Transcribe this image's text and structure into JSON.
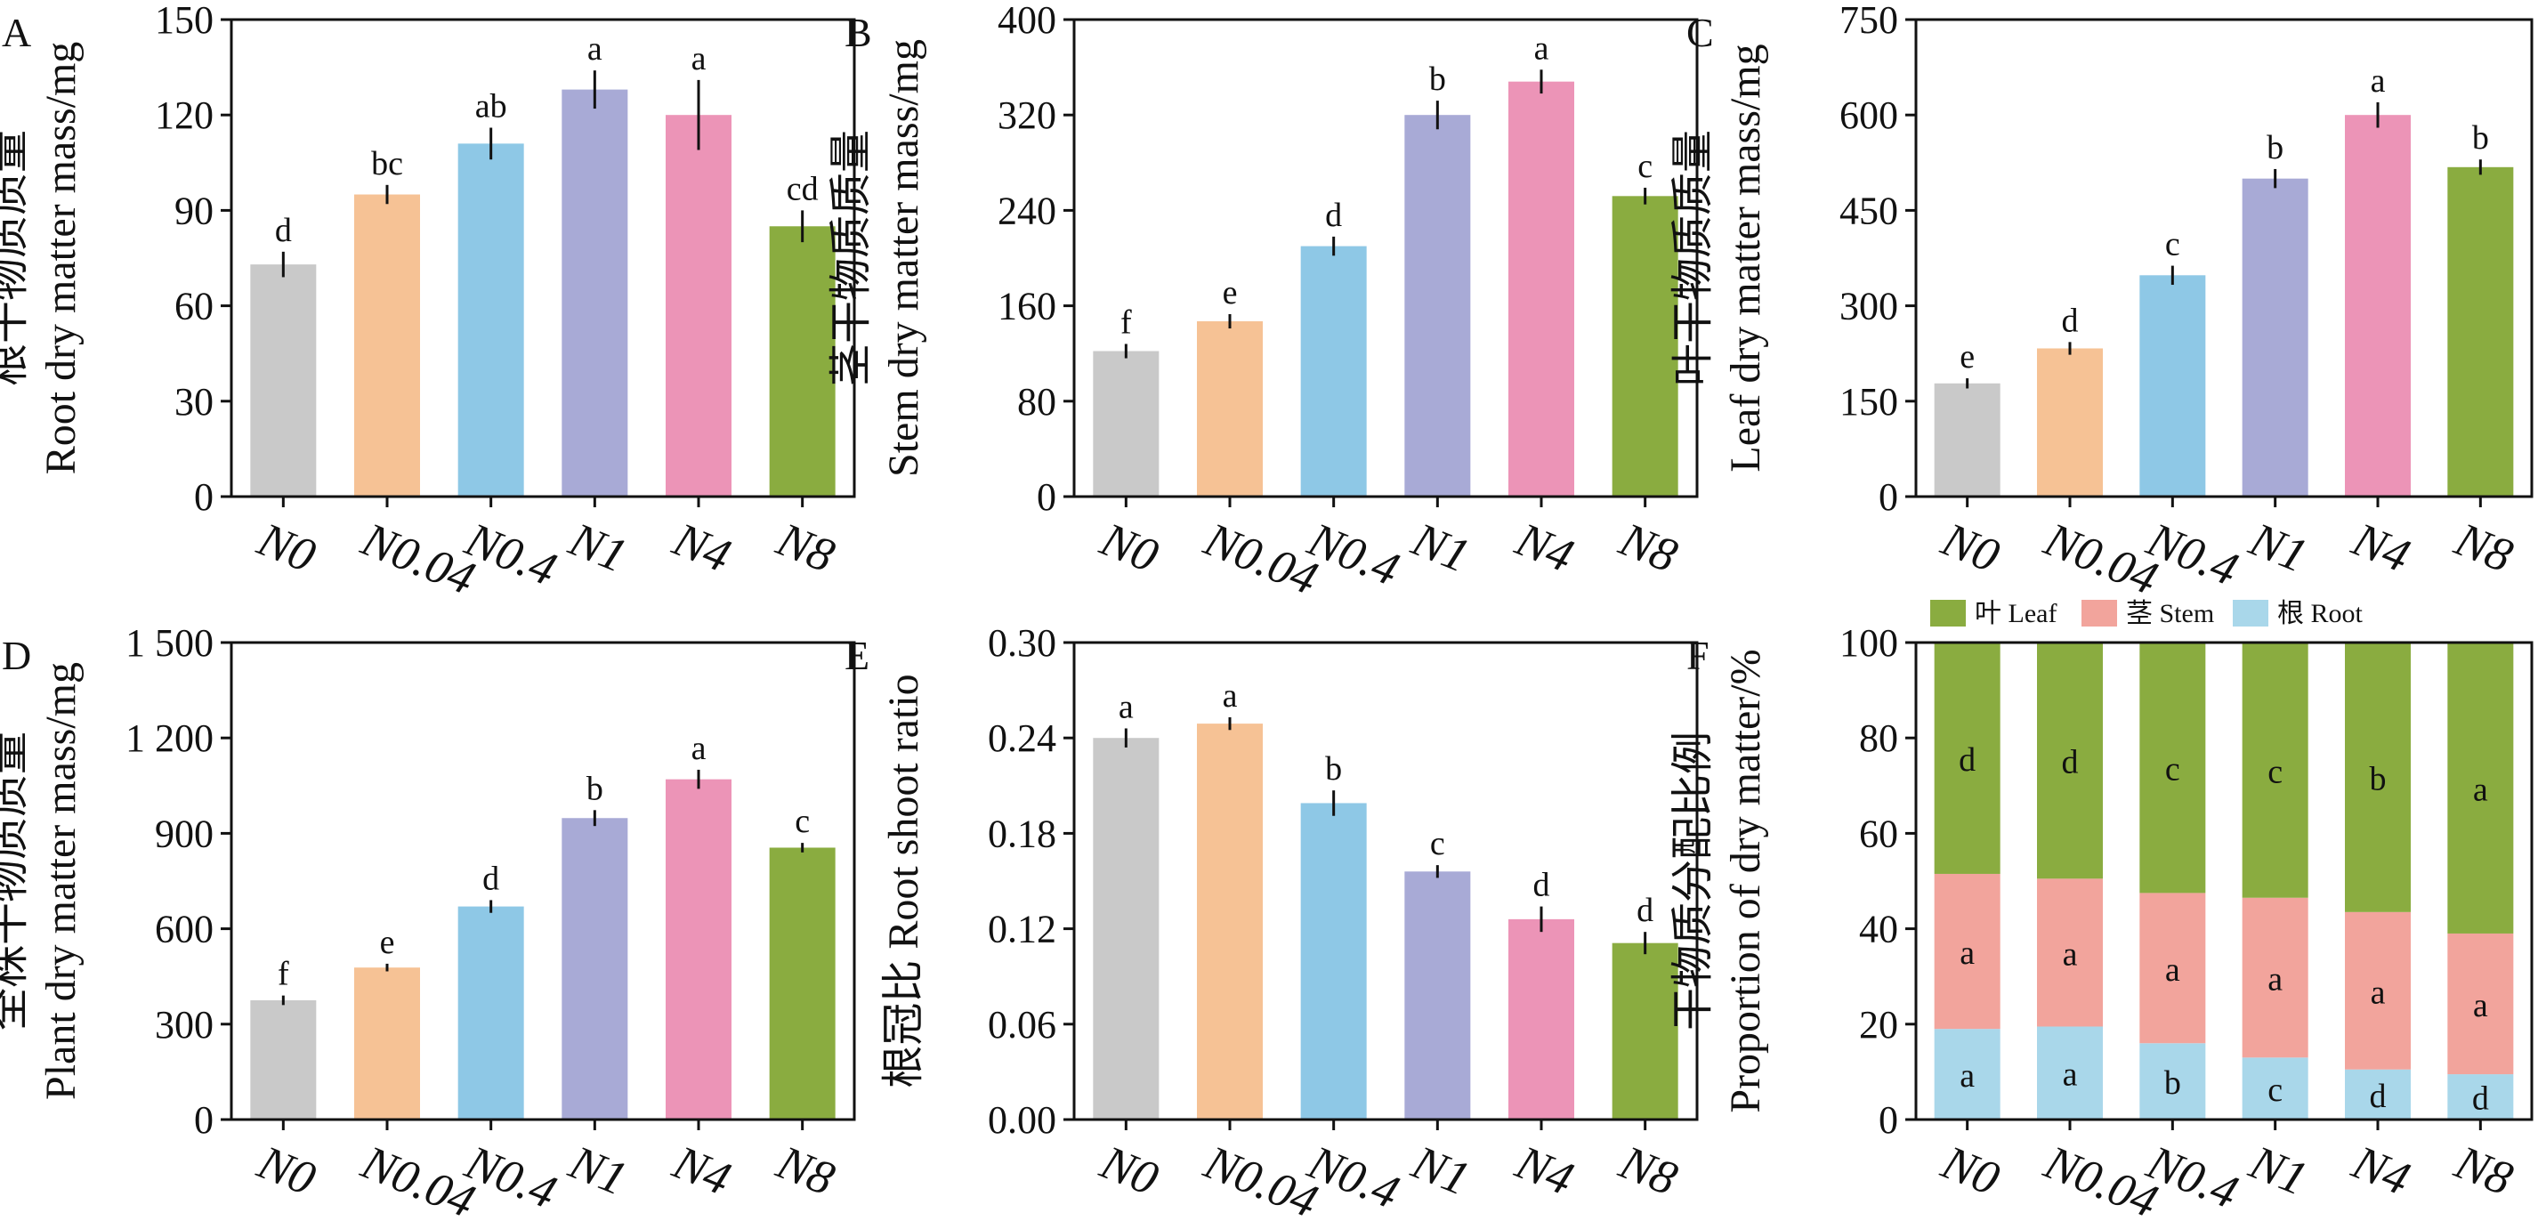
{
  "colors": {
    "N0": "#c9c9c9",
    "N0.04": "#f6c295",
    "N0.4": "#8ec8e6",
    "N1": "#a8aad6",
    "N4": "#ec94b7",
    "N8": "#8aac40",
    "leaf": "#8aac40",
    "stem": "#f2a49c",
    "root": "#a9d7ea"
  },
  "chart_data": [
    {
      "panel": "A",
      "type": "bar",
      "ylabel_cn": "根干物质质量",
      "ylabel_en": "Root dry matter mass/mg",
      "categories": [
        "N0",
        "N0.04",
        "N0.4",
        "N1",
        "N4",
        "N8"
      ],
      "values": [
        73,
        95,
        111,
        128,
        120,
        85
      ],
      "errors": [
        4,
        3,
        5,
        6,
        11,
        5
      ],
      "letters": [
        "d",
        "bc",
        "ab",
        "a",
        "a",
        "cd"
      ],
      "ylim": [
        0,
        150
      ],
      "yticks": [
        0,
        30,
        60,
        90,
        120,
        150
      ],
      "ytick_labels": [
        "0",
        "30",
        "60",
        "90",
        "120",
        "150"
      ]
    },
    {
      "panel": "B",
      "type": "bar",
      "ylabel_cn": "茎干物质质量",
      "ylabel_en": "Stem dry matter mass/mg",
      "categories": [
        "N0",
        "N0.04",
        "N0.4",
        "N1",
        "N4",
        "N8"
      ],
      "values": [
        122,
        147,
        210,
        320,
        348,
        252
      ],
      "errors": [
        6,
        6,
        8,
        12,
        10,
        7
      ],
      "letters": [
        "f",
        "e",
        "d",
        "b",
        "a",
        "c"
      ],
      "ylim": [
        0,
        400
      ],
      "yticks": [
        0,
        80,
        160,
        240,
        320,
        400
      ],
      "ytick_labels": [
        "0",
        "80",
        "160",
        "240",
        "320",
        "400"
      ]
    },
    {
      "panel": "C",
      "type": "bar",
      "ylabel_cn": "叶干物质质量",
      "ylabel_en": "Leaf dry matter mass/mg",
      "categories": [
        "N0",
        "N0.04",
        "N0.4",
        "N1",
        "N4",
        "N8"
      ],
      "values": [
        178,
        233,
        348,
        500,
        600,
        518
      ],
      "errors": [
        8,
        10,
        15,
        15,
        20,
        12
      ],
      "letters": [
        "e",
        "d",
        "c",
        "b",
        "a",
        "b"
      ],
      "ylim": [
        0,
        750
      ],
      "yticks": [
        0,
        150,
        300,
        450,
        600,
        750
      ],
      "ytick_labels": [
        "0",
        "150",
        "300",
        "450",
        "600",
        "750"
      ]
    },
    {
      "panel": "D",
      "type": "bar",
      "ylabel_cn": "全株干物质质量",
      "ylabel_en": "Plant dry matter mass/mg",
      "categories": [
        "N0",
        "N0.04",
        "N0.4",
        "N1",
        "N4",
        "N8"
      ],
      "values": [
        375,
        478,
        670,
        948,
        1070,
        855
      ],
      "errors": [
        15,
        12,
        20,
        25,
        30,
        15
      ],
      "letters": [
        "f",
        "e",
        "d",
        "b",
        "a",
        "c"
      ],
      "ylim": [
        0,
        1500
      ],
      "yticks": [
        0,
        300,
        600,
        900,
        1200,
        1500
      ],
      "ytick_labels": [
        "0",
        "300",
        "600",
        "900",
        "1 200",
        "1 500"
      ]
    },
    {
      "panel": "E",
      "type": "bar",
      "ylabel_cn": "根冠比",
      "ylabel_en": "Root shoot ratio",
      "categories": [
        "N0",
        "N0.04",
        "N0.4",
        "N1",
        "N4",
        "N8"
      ],
      "values": [
        0.24,
        0.249,
        0.199,
        0.156,
        0.126,
        0.111
      ],
      "errors": [
        0.006,
        0.004,
        0.008,
        0.004,
        0.008,
        0.007
      ],
      "letters": [
        "a",
        "a",
        "b",
        "c",
        "d",
        "d"
      ],
      "ylim": [
        0,
        0.3
      ],
      "yticks": [
        0,
        0.06,
        0.12,
        0.18,
        0.24,
        0.3
      ],
      "ytick_labels": [
        "0.00",
        "0.06",
        "0.12",
        "0.18",
        "0.24",
        "0.30"
      ]
    },
    {
      "panel": "F",
      "type": "bar",
      "stacked": true,
      "ylabel_cn": "干物质分配比例",
      "ylabel_en": "Proportion of dry matter/%",
      "categories": [
        "N0",
        "N0.04",
        "N0.4",
        "N1",
        "N4",
        "N8"
      ],
      "series": [
        {
          "key": "root",
          "name_cn": "根",
          "name_en": "Root",
          "values": [
            19,
            19.5,
            16,
            13,
            10.5,
            9.5
          ],
          "letters": [
            "a",
            "a",
            "b",
            "c",
            "d",
            "d"
          ]
        },
        {
          "key": "stem",
          "name_cn": "茎",
          "name_en": "Stem",
          "values": [
            32.5,
            31,
            31.5,
            33.5,
            33,
            29.5
          ],
          "letters": [
            "a",
            "a",
            "a",
            "a",
            "a",
            "a"
          ]
        },
        {
          "key": "leaf",
          "name_cn": "叶",
          "name_en": "Leaf",
          "values": [
            48.5,
            49.5,
            52.5,
            53.5,
            56.5,
            61
          ],
          "letters": [
            "d",
            "d",
            "c",
            "c",
            "b",
            "a"
          ]
        }
      ],
      "legend": [
        "leaf",
        "stem",
        "root"
      ],
      "legend_position": "top",
      "ylim": [
        0,
        100
      ],
      "yticks": [
        0,
        20,
        40,
        60,
        80,
        100
      ],
      "ytick_labels": [
        "0",
        "20",
        "40",
        "60",
        "80",
        "100"
      ]
    }
  ]
}
